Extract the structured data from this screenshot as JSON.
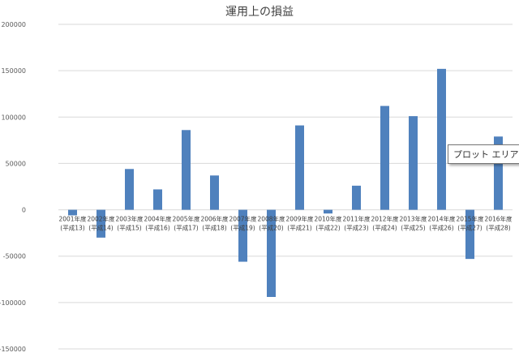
{
  "chart_data": {
    "type": "bar",
    "title": "運用上の損益",
    "xlabel": "",
    "ylabel": "",
    "ylim": [
      -150000,
      200000
    ],
    "ytick_step": 50000,
    "grid": true,
    "legend": "none",
    "bar_color": "#4F81BD",
    "categories": [
      [
        "2001年度",
        "(平成13)"
      ],
      [
        "2002年度",
        "(平成14)"
      ],
      [
        "2003年度",
        "(平成15)"
      ],
      [
        "2004年度",
        "(平成16)"
      ],
      [
        "2005年度",
        "(平成17)"
      ],
      [
        "2006年度",
        "(平成18)"
      ],
      [
        "2007年度",
        "(平成19)"
      ],
      [
        "2008年度",
        "(平成20)"
      ],
      [
        "2009年度",
        "(平成21)"
      ],
      [
        "2010年度",
        "(平成22)"
      ],
      [
        "2011年度",
        "(平成23)"
      ],
      [
        "2012年度",
        "(平成24)"
      ],
      [
        "2013年度",
        "(平成25)"
      ],
      [
        "2014年度",
        "(平成26)"
      ],
      [
        "2015年度",
        "(平成27)"
      ],
      [
        "2016年度",
        "(平成28)"
      ]
    ],
    "values": [
      -6000,
      -30000,
      44000,
      22000,
      86000,
      37000,
      -56000,
      -94000,
      91000,
      -4000,
      26000,
      112000,
      101000,
      152000,
      -53000,
      79000
    ]
  },
  "tooltip": {
    "text": "プロット エリア"
  }
}
